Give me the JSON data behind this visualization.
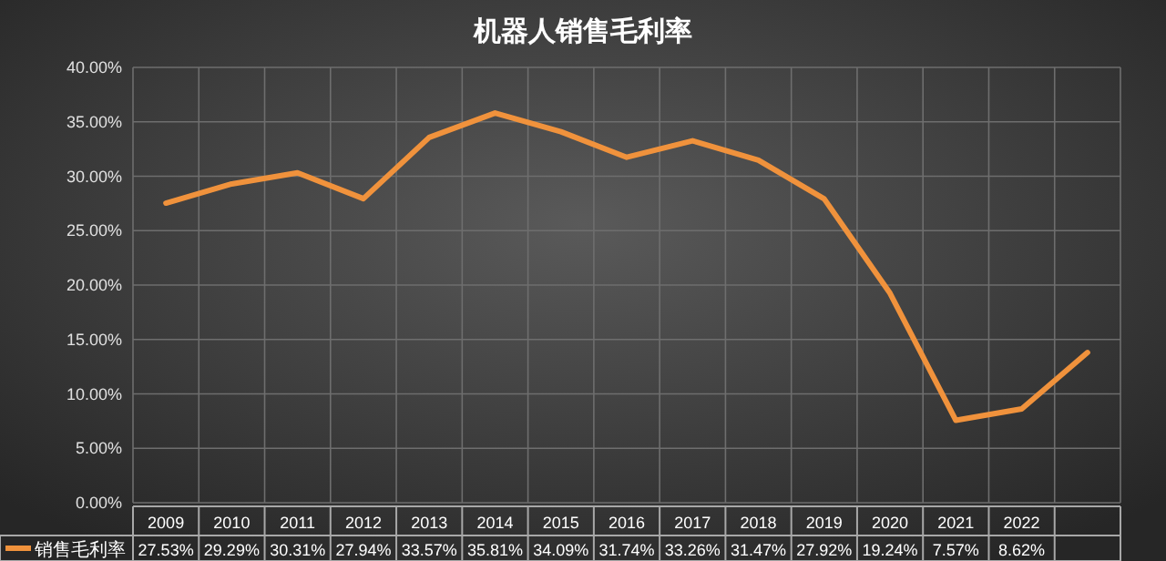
{
  "chart_data": {
    "type": "line",
    "title": "机器人销售毛利率",
    "categories": [
      "2009",
      "2010",
      "2011",
      "2012",
      "2013",
      "2014",
      "2015",
      "2016",
      "2017",
      "2018",
      "2019",
      "2020",
      "2021",
      "2022",
      null
    ],
    "series": [
      {
        "name": "销售毛利率",
        "color": "#f0923c",
        "values": [
          27.53,
          29.29,
          30.31,
          27.94,
          33.57,
          35.81,
          34.09,
          31.74,
          33.26,
          31.47,
          27.92,
          19.24,
          7.57,
          8.62,
          13.8
        ],
        "value_labels": [
          "27.53%",
          "29.29%",
          "30.31%",
          "27.94%",
          "33.57%",
          "35.81%",
          "34.09%",
          "31.74%",
          "33.26%",
          "31.47%",
          "27.92%",
          "19.24%",
          "7.57%",
          "8.62%",
          null
        ]
      }
    ],
    "ylim": [
      0,
      40
    ],
    "yticks": [
      {
        "value": 0,
        "label": "0.00%"
      },
      {
        "value": 5,
        "label": "5.00%"
      },
      {
        "value": 10,
        "label": "10.00%"
      },
      {
        "value": 15,
        "label": "15.00%"
      },
      {
        "value": 20,
        "label": "20.00%"
      },
      {
        "value": 25,
        "label": "25.00%"
      },
      {
        "value": 30,
        "label": "30.00%"
      },
      {
        "value": 35,
        "label": "35.00%"
      },
      {
        "value": 40,
        "label": "40.00%"
      }
    ],
    "grid": true
  }
}
